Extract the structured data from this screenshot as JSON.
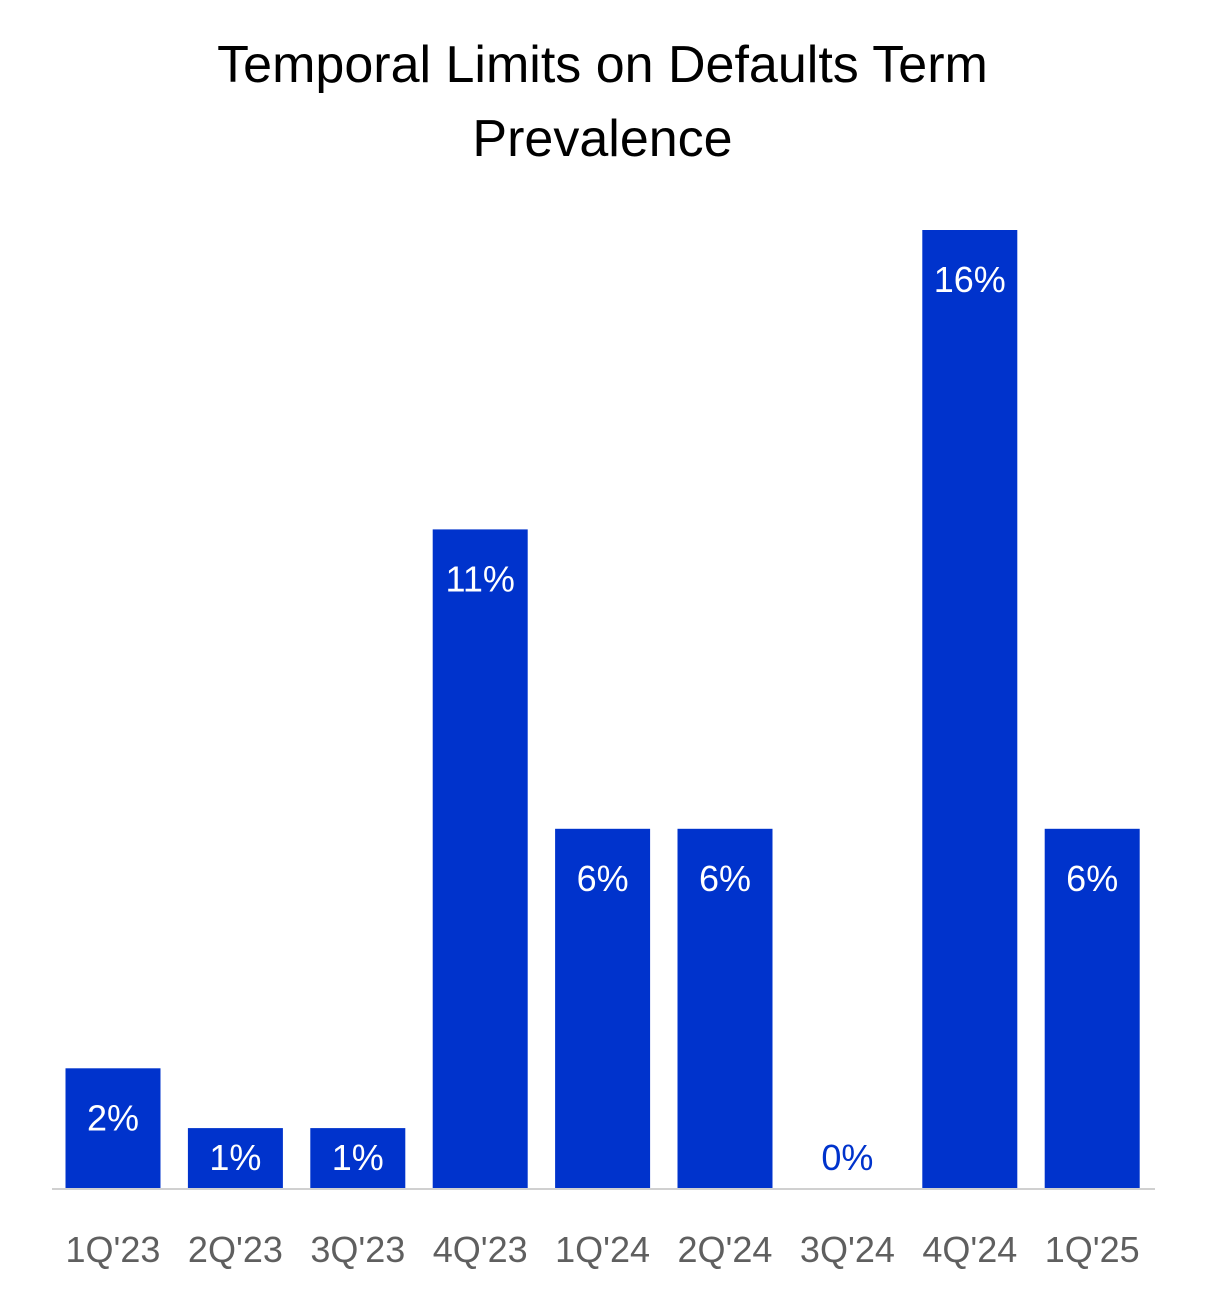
{
  "chart_data": {
    "type": "bar",
    "title_lines": [
      "Temporal Limits on Defaults Term",
      "Prevalence"
    ],
    "categories": [
      "1Q'23",
      "2Q'23",
      "3Q'23",
      "4Q'23",
      "1Q'24",
      "2Q'24",
      "3Q'24",
      "4Q'24",
      "1Q'25"
    ],
    "values": [
      2,
      1,
      1,
      11,
      6,
      6,
      0,
      16,
      6
    ],
    "data_labels": [
      "2%",
      "1%",
      "1%",
      "11%",
      "6%",
      "6%",
      "0%",
      "16%",
      "6%"
    ],
    "ylim": [
      0,
      16
    ],
    "grid": false,
    "legend": false,
    "colors": {
      "bar": "#0033cc",
      "label_inside": "#ffffff",
      "label_outside": "#0033cc",
      "axis": "#d0d0d0",
      "tick": "#5f5f5f"
    }
  }
}
